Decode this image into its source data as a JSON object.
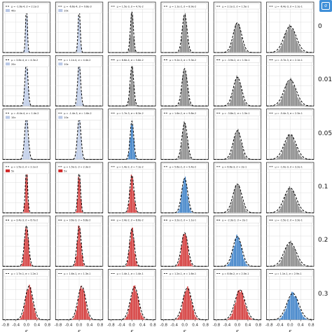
{
  "colors": {
    "gray": "#808080",
    "blue": "#2f78c4",
    "red": "#d02a2a",
    "light_blue": "#b9c8e6",
    "fit": "#000000"
  },
  "corner_tab": {
    "label": "σ"
  },
  "xlabel": "ε",
  "x_ticks": [
    "-0.8",
    "-0.4",
    "0.0",
    "0.4",
    "0.8"
  ],
  "row_labels": [
    "0",
    "0.01",
    "0.05",
    "0.1",
    "0.2",
    "0.3"
  ],
  "chart_data": {
    "type": "histogram-grid",
    "rows": 6,
    "cols": 6,
    "xlim": [
      -0.9,
      0.9
    ],
    "panels": [
      [
        {
          "color": "lightblue",
          "mu": 0.0,
          "sigma": 0.03,
          "legend": [
            "μ = -1.6e-4, σ = 2.1e-2",
            "40x"
          ],
          "peak": 0.97
        },
        {
          "color": "lightblue",
          "mu": 0.0,
          "sigma": 0.035,
          "legend": [
            "μ = -6.6e-4, σ = 9.8e-3",
            "10x"
          ],
          "peak": 0.9
        },
        {
          "color": "gray",
          "mu": 0.0,
          "sigma": 0.05,
          "legend": [
            "μ = 1.5e-3, σ = 4.7e-2"
          ],
          "peak": 0.85
        },
        {
          "color": "gray",
          "mu": 0.0,
          "sigma": 0.08,
          "legend": [
            "μ = 1.1e-2, σ = 8.9e-2"
          ],
          "peak": 0.8
        },
        {
          "color": "gray",
          "mu": 0.0,
          "sigma": 0.14,
          "legend": [
            "μ = 2.1e-2, σ = 1.5e-1"
          ],
          "peak": 0.62
        },
        {
          "color": "gray",
          "mu": 0.0,
          "sigma": 0.2,
          "legend": [
            "μ = -6.4e-3, σ = 2.1e-1"
          ],
          "peak": 0.55
        }
      ],
      [
        {
          "color": "lightblue",
          "mu": 0.0,
          "sigma": 0.05,
          "legend": [
            "μ = 3.8e-4, σ = 4.3e-2",
            "20x"
          ],
          "peak": 0.92
        },
        {
          "color": "lightblue",
          "mu": 0.0,
          "sigma": 0.05,
          "legend": [
            "μ = 1.1e-4, σ = 4.4e-2",
            "10x"
          ],
          "peak": 0.88
        },
        {
          "color": "gray",
          "mu": 0.0,
          "sigma": 0.06,
          "legend": [
            "μ = 6.6e-4, σ = 5.8e-2"
          ],
          "peak": 0.83
        },
        {
          "color": "gray",
          "mu": 0.0,
          "sigma": 0.09,
          "legend": [
            "μ = 9.2e-3, σ = 9.3e-2"
          ],
          "peak": 0.78
        },
        {
          "color": "gray",
          "mu": 0.0,
          "sigma": 0.14,
          "legend": [
            "μ = -3.9e-2, σ = 1.5e-1"
          ],
          "peak": 0.6
        },
        {
          "color": "gray",
          "mu": 0.0,
          "sigma": 0.2,
          "legend": [
            "μ = -5.7e-3, σ = 2.1e-1"
          ],
          "peak": 0.55
        }
      ],
      [
        {
          "color": "lightblue",
          "mu": 0.0,
          "sigma": 0.06,
          "legend": [
            "μ = -6.4e-4, σ = 1.4e-2",
            "10x"
          ],
          "peak": 0.88
        },
        {
          "color": "lightblue",
          "mu": 0.0,
          "sigma": 0.06,
          "legend": [
            "μ = -1.4e-3, σ = 1.6e-2",
            "10x"
          ],
          "peak": 0.85
        },
        {
          "color": "blue",
          "mu": 0.0,
          "sigma": 0.06,
          "legend": [
            "μ = 1.7e-3, σ = 6.3e-2"
          ],
          "peak": 0.8
        },
        {
          "color": "gray",
          "mu": 0.0,
          "sigma": 0.09,
          "legend": [
            "μ = 1.6e-2, σ = 9.8e-2"
          ],
          "peak": 0.76
        },
        {
          "color": "gray",
          "mu": 0.0,
          "sigma": 0.14,
          "legend": [
            "μ = -3.8e-2, σ = 1.5e-1"
          ],
          "peak": 0.6
        },
        {
          "color": "gray",
          "mu": 0.0,
          "sigma": 0.2,
          "legend": [
            "μ = -5.4e-3, σ = 2.3e-1"
          ],
          "peak": 0.52
        }
      ],
      [
        {
          "color": "red",
          "mu": 0.0,
          "sigma": 0.04,
          "legend": [
            "μ = 1.5e-2, σ = 2.1e-2",
            "5x"
          ],
          "peak": 0.88
        },
        {
          "color": "red",
          "mu": 0.0,
          "sigma": 0.045,
          "legend": [
            "μ = 1.5e-2, σ = 2.3e-2",
            "5x"
          ],
          "peak": 0.85
        },
        {
          "color": "red",
          "mu": 0.0,
          "sigma": 0.07,
          "legend": [
            "μ = 1.4e-2, σ = 7.1e-2"
          ],
          "peak": 0.78
        },
        {
          "color": "blue",
          "mu": 0.0,
          "sigma": 0.1,
          "legend": [
            "μ = 5.6e-2, σ = 9.4e-2"
          ],
          "peak": 0.72
        },
        {
          "color": "gray",
          "mu": 0.0,
          "sigma": 0.15,
          "legend": [
            "μ = 6.6e-3, σ = 2e-1"
          ],
          "peak": 0.6
        },
        {
          "color": "gray",
          "mu": 0.0,
          "sigma": 0.2,
          "legend": [
            "μ = -1.0e-3, σ = 3.2e-1"
          ],
          "peak": 0.52
        }
      ],
      [
        {
          "color": "red",
          "mu": 0.0,
          "sigma": 0.07,
          "legend": [
            "μ = 3.4e-3, σ = 6.7e-2"
          ],
          "peak": 0.85
        },
        {
          "color": "red",
          "mu": 0.0,
          "sigma": 0.07,
          "legend": [
            "μ = 3.6e-3, σ = 6.8e-2"
          ],
          "peak": 0.83
        },
        {
          "color": "red",
          "mu": 0.0,
          "sigma": 0.08,
          "legend": [
            "μ = 2.4e-2, σ = 8.6e-2"
          ],
          "peak": 0.78
        },
        {
          "color": "red",
          "mu": 0.0,
          "sigma": 0.11,
          "legend": [
            "μ = 3.2e-2, σ = 1.1e-1"
          ],
          "peak": 0.7
        },
        {
          "color": "blue",
          "mu": 0.0,
          "sigma": 0.15,
          "legend": [
            "μ = -2.3e-2, σ = 2e-1"
          ],
          "peak": 0.62
        },
        {
          "color": "gray",
          "mu": 0.0,
          "sigma": 0.2,
          "legend": [
            "μ = -1.5e-2, σ = 3.3e-1"
          ],
          "peak": 0.5
        }
      ],
      [
        {
          "color": "red",
          "mu": 0.1,
          "sigma": 0.13,
          "legend": [
            "μ = 1.7e-1, σ = 1.2e-1"
          ],
          "peak": 0.7
        },
        {
          "color": "red",
          "mu": 0.1,
          "sigma": 0.13,
          "legend": [
            "μ = 1.6e-1, σ = 1.3e-1"
          ],
          "peak": 0.7
        },
        {
          "color": "red",
          "mu": 0.1,
          "sigma": 0.14,
          "legend": [
            "μ = 1.4e-1, σ = 1.4e-1"
          ],
          "peak": 0.68
        },
        {
          "color": "red",
          "mu": 0.1,
          "sigma": 0.15,
          "legend": [
            "μ = 1.2e-1, σ = 1.6e-1"
          ],
          "peak": 0.66
        },
        {
          "color": "red",
          "mu": 0.1,
          "sigma": 0.17,
          "legend": [
            "μ = 8.6e-2, σ = 2.0e-1"
          ],
          "peak": 0.62
        },
        {
          "color": "blue",
          "mu": 0.1,
          "sigma": 0.2,
          "legend": [
            "μ = 1.1e-1, σ = 2.9e-1"
          ],
          "peak": 0.55
        }
      ]
    ]
  }
}
